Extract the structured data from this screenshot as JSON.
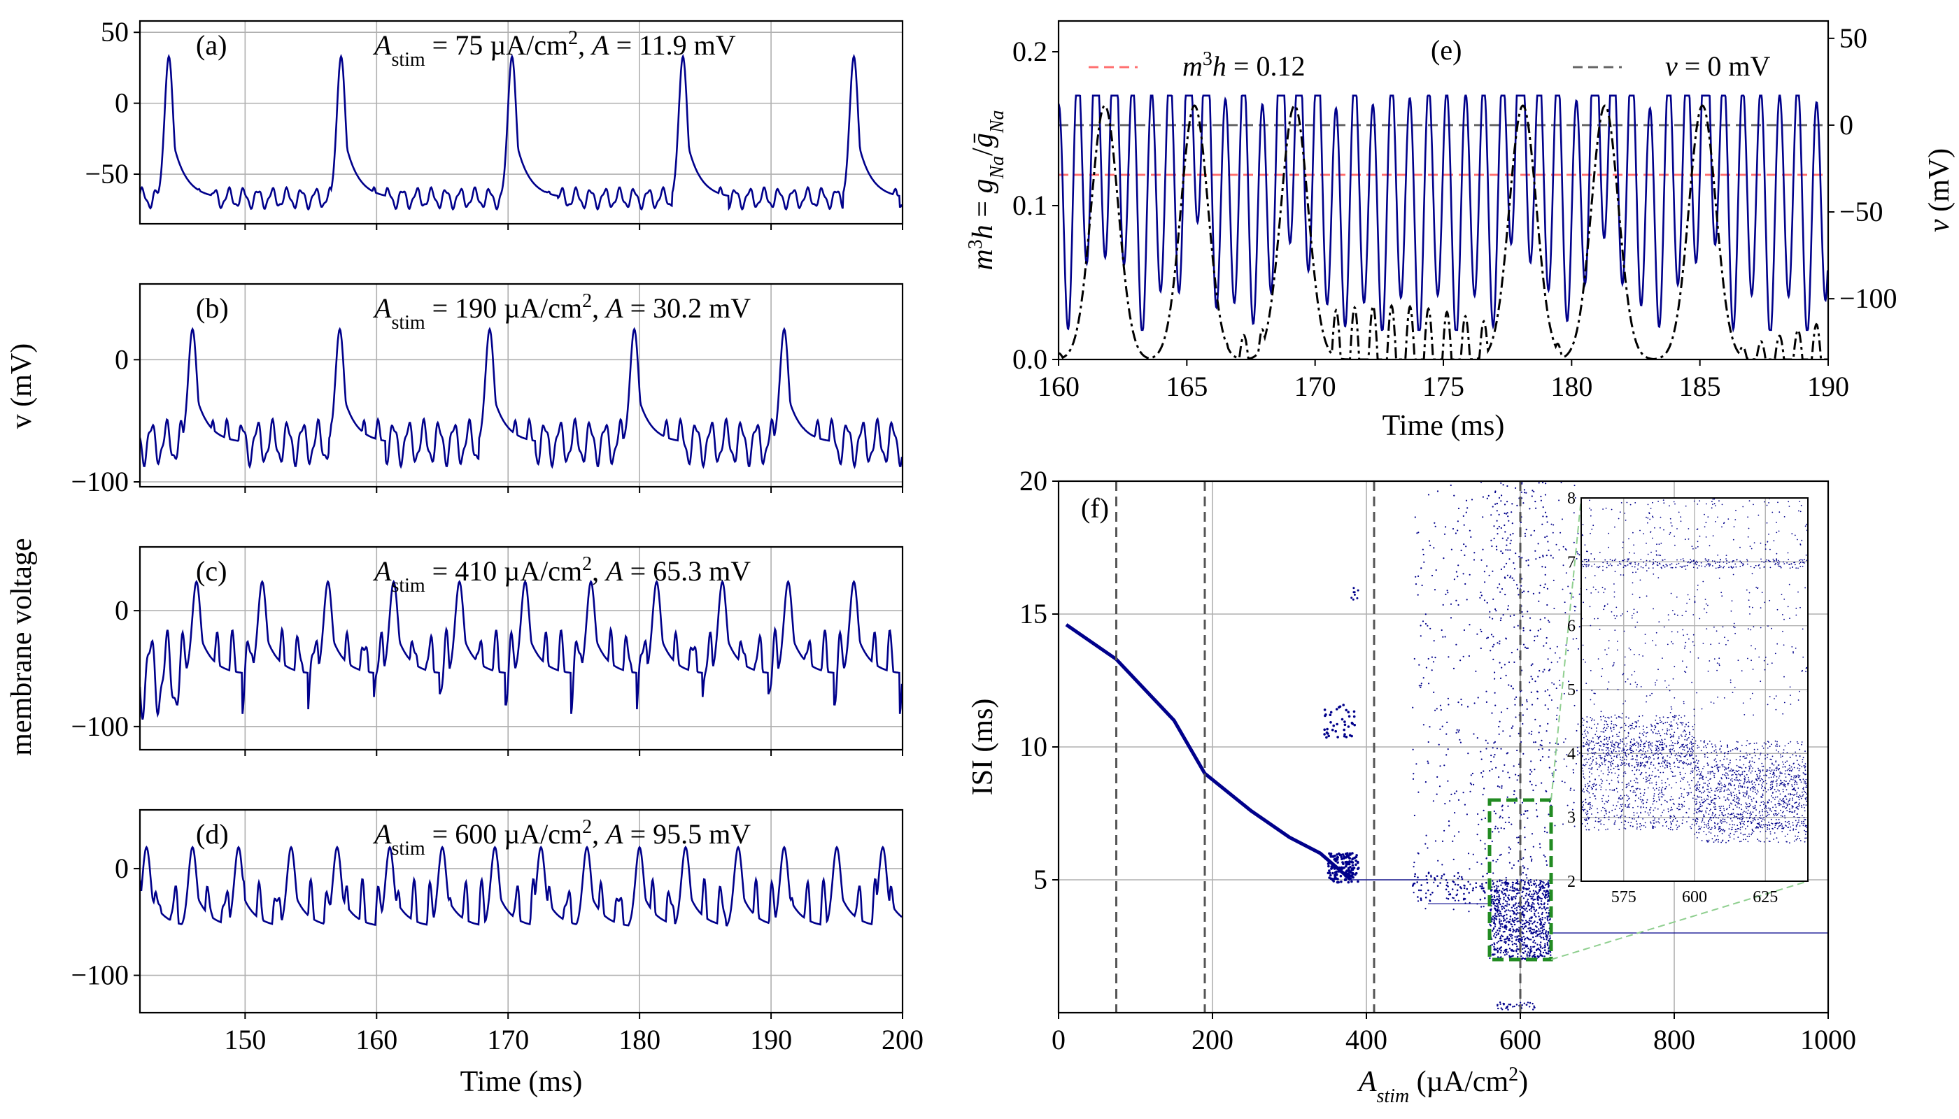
{
  "figure": {
    "shared_ylabel_v": "v (mV)",
    "shared_ylabel_mv": "membrane voltage"
  },
  "chart_data": [
    {
      "id": "a",
      "type": "line",
      "panel_label": "(a)",
      "annotation": "A_stim = 75 µA/cm², A = 11.9 mV",
      "annotation_parts": {
        "stim": "75",
        "amp": "11.9"
      },
      "xlabel": "",
      "ylabel": "",
      "xlim": [
        142,
        200
      ],
      "ylim": [
        -85,
        58
      ],
      "yticks": [
        50,
        0,
        -50
      ],
      "xticks": [
        150,
        160,
        170,
        180,
        190,
        200
      ],
      "show_xticklabels": false,
      "grid": true,
      "color": "#00008b",
      "spike_times": [
        144.2,
        157.3,
        170.3,
        183.3,
        196.3
      ],
      "spike_peak_mV": 33,
      "baseline_mV": -67,
      "oscillation_amplitude_mV": 12,
      "oscillation_period_ms": 1.1
    },
    {
      "id": "b",
      "type": "line",
      "panel_label": "(b)",
      "annotation": "A_stim = 190 µA/cm², A = 30.2 mV",
      "annotation_parts": {
        "stim": "190",
        "amp": "30.2"
      },
      "xlabel": "",
      "ylabel": "",
      "xlim": [
        142,
        200
      ],
      "ylim": [
        -104,
        62
      ],
      "yticks": [
        0,
        -100
      ],
      "xticks": [
        150,
        160,
        170,
        180,
        190,
        200
      ],
      "show_xticklabels": false,
      "grid": true,
      "color": "#00008b",
      "spike_times": [
        146.0,
        157.2,
        168.6,
        179.6,
        191.0
      ],
      "spike_peak_mV": 25,
      "baseline_mV": -68,
      "oscillation_amplitude_mV": 30,
      "oscillation_period_ms": 1.15
    },
    {
      "id": "c",
      "type": "line",
      "panel_label": "(c)",
      "annotation": "A_stim = 410 µA/cm², A = 65.3 mV",
      "annotation_parts": {
        "stim": "410",
        "amp": "65.3"
      },
      "xlabel": "",
      "ylabel": "",
      "xlim": [
        142,
        200
      ],
      "ylim": [
        -120,
        55
      ],
      "yticks": [
        0,
        -100
      ],
      "xticks": [
        150,
        160,
        170,
        180,
        190,
        200
      ],
      "show_xticklabels": false,
      "grid": true,
      "color": "#00008b",
      "spike_times": [
        146.3,
        151.3,
        156.3,
        161.3,
        166.3,
        171.3,
        176.3,
        181.3,
        186.3,
        191.3,
        196.3
      ],
      "spike_peak_mV": 25,
      "baseline_mV": -55,
      "oscillation_amplitude_mV": 60,
      "oscillation_period_ms": 1.25
    },
    {
      "id": "d",
      "type": "line",
      "panel_label": "(d)",
      "annotation": "A_stim = 600 µA/cm², A = 95.5 mV",
      "annotation_parts": {
        "stim": "600",
        "amp": "95.5"
      },
      "xlabel": "Time (ms)",
      "ylabel": "",
      "xlim": [
        142,
        200
      ],
      "ylim": [
        -135,
        55
      ],
      "yticks": [
        0,
        -100
      ],
      "xticks": [
        150,
        160,
        170,
        180,
        190,
        200
      ],
      "show_xticklabels": true,
      "grid": true,
      "color": "#00008b",
      "spike_times": [
        142.5,
        146.0,
        149.5,
        153.5,
        157.0,
        161.0,
        165.0,
        169.0,
        172.5,
        176.0,
        180.0,
        183.5,
        187.5,
        191.0,
        195.0,
        198.5
      ],
      "spike_peak_mV": 20,
      "baseline_mV": -55,
      "oscillation_amplitude_mV": 70,
      "oscillation_period_ms": 1.3
    },
    {
      "id": "e",
      "type": "line",
      "panel_label": "(e)",
      "xlabel": "Time (ms)",
      "ylabel_left": "m³h = g_Na/ḡ_Na",
      "ylabel_right": "v (mV)",
      "xlim": [
        160,
        190
      ],
      "ylim_left": [
        0,
        0.22
      ],
      "ylim_right": [
        -135,
        60
      ],
      "xticks": [
        160,
        165,
        170,
        175,
        180,
        185,
        190
      ],
      "yticks_left": [
        0.0,
        0.1,
        0.2
      ],
      "yticks_right": [
        50,
        0,
        -50,
        -100
      ],
      "grid": false,
      "legend": [
        {
          "label": "m³h = 0.12",
          "color": "#ff7070",
          "style": "dashed"
        },
        {
          "label": "v = 0 mV",
          "color": "#666666",
          "style": "dashed"
        }
      ],
      "threshold_m3h": 0.12,
      "threshold_v_mV": 0,
      "series": [
        {
          "name": "v",
          "color": "#00008b",
          "style": "solid",
          "axis": "right",
          "burst_peaks_ms": [
            161.8,
            165.3,
            169.2,
            178.1,
            181.3,
            185.1
          ],
          "peak_mV": 17,
          "trough_mV": -118,
          "period_ms": 0.72
        },
        {
          "name": "m3h",
          "color": "#000000",
          "style": "dashdot",
          "axis": "left",
          "burst_peaks_ms": [
            161.8,
            165.3,
            169.2,
            178.1,
            181.3,
            185.1
          ],
          "peak_value": 0.165
        }
      ]
    },
    {
      "id": "f",
      "type": "scatter",
      "panel_label": "(f)",
      "xlabel": "A_stim (µA/cm²)",
      "ylabel": "ISI (ms)",
      "xlim": [
        0,
        1000
      ],
      "ylim": [
        0,
        20
      ],
      "xticks": [
        0,
        200,
        400,
        600,
        800,
        1000
      ],
      "yticks": [
        5,
        10,
        15,
        20
      ],
      "grid": true,
      "color": "#00008b",
      "reference_lines_x": [
        75,
        190,
        410,
        600
      ],
      "zoom_box": {
        "x": [
          560,
          640
        ],
        "y": [
          2,
          8
        ],
        "color": "#228b22"
      },
      "main_branch": [
        [
          10,
          14.6
        ],
        [
          75,
          13.3
        ],
        [
          150,
          11.0
        ],
        [
          190,
          9.0
        ],
        [
          250,
          7.6
        ],
        [
          300,
          6.6
        ],
        [
          340,
          6.0
        ],
        [
          380,
          5.0
        ]
      ],
      "flat_lines": [
        {
          "x": [
            380,
            480
          ],
          "y": 5.0
        },
        {
          "x": [
            480,
            565
          ],
          "y": 4.1
        },
        {
          "x": [
            640,
            1000
          ],
          "y": 3.0
        }
      ],
      "inset": {
        "xlim": [
          560,
          640
        ],
        "ylim": [
          2,
          8
        ],
        "xticks": [
          575,
          600,
          625
        ],
        "yticks": [
          2,
          3,
          4,
          5,
          6,
          7,
          8
        ]
      }
    }
  ]
}
